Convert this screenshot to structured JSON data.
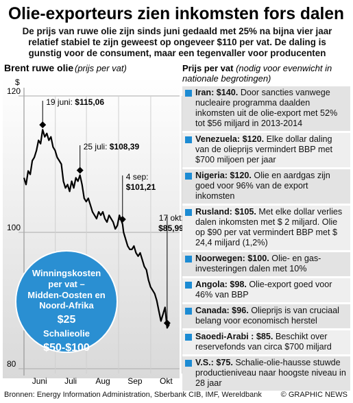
{
  "title": "Olie-exporteurs zien inkomsten fors dalen",
  "subtitle_lines": [
    "De prijs van ruwe olie zijn sinds juni gedaald met 25% na bijna vier jaar",
    "relatief stabiel te zijn geweest op ongeveer $110 per vat. De daling is",
    "gunstig voor de consument, maar een tegenvaller voor producenten"
  ],
  "chart_data": {
    "type": "line",
    "title": "Brent ruwe olie",
    "subtitle": "(prijs per vat)",
    "y_unit": "$",
    "x": [
      0,
      2,
      4,
      6,
      8,
      10,
      12,
      14,
      16,
      18,
      20,
      22,
      24,
      26,
      28,
      30,
      32,
      34,
      36,
      38,
      40,
      42,
      44,
      46,
      48,
      50,
      52,
      54,
      56,
      58,
      60,
      62,
      64,
      66,
      68,
      70,
      72,
      74,
      76,
      78,
      80,
      82,
      84,
      86,
      88,
      90,
      92,
      95,
      96,
      98,
      100,
      102,
      104,
      106,
      108,
      110,
      112,
      114,
      116,
      118,
      120,
      122,
      124,
      126,
      128,
      130,
      132,
      134,
      136,
      138,
      140
    ],
    "series": [
      {
        "name": "Brent ruwe olie",
        "color": "#000000",
        "values": [
          108,
          107,
          109,
          108.5,
          110.5,
          111,
          112,
          113.5,
          113,
          115.06,
          114,
          114.5,
          113.5,
          114,
          112.5,
          112,
          111,
          110.5,
          110,
          107.5,
          106.5,
          107,
          106,
          107.5,
          106.5,
          108,
          107.5,
          108.39,
          107,
          105,
          104.5,
          105,
          104,
          103,
          102.5,
          102,
          103,
          102.5,
          103,
          102,
          101.5,
          102.5,
          102,
          101.5,
          100.5,
          101,
          102.5,
          101.21,
          100,
          99,
          98,
          97.5,
          97.5,
          98,
          97,
          96.5,
          97,
          96,
          95,
          94.5,
          93,
          92,
          91.5,
          91,
          90,
          88.5,
          87,
          88,
          89,
          85.99,
          86.5
        ]
      }
    ],
    "xlim": [
      0,
      150
    ],
    "xticks": [
      {
        "value": 15,
        "label": "Juni"
      },
      {
        "value": 45,
        "label": "Juli"
      },
      {
        "value": 76,
        "label": "Aug"
      },
      {
        "value": 107,
        "label": "Sep"
      },
      {
        "value": 137,
        "label": "Okt"
      }
    ],
    "ylim": [
      80,
      120
    ],
    "yticks": [
      80,
      100,
      120
    ],
    "annotations": [
      {
        "label": "19 juni:",
        "price_label": "$115,06",
        "x": 18,
        "value": 115.06
      },
      {
        "label": "25 juli:",
        "price_label": "$108,39",
        "x": 54,
        "value": 108.39
      },
      {
        "label": "4 sep:",
        "price_label": "$101,21",
        "x": 95,
        "value": 101.21
      },
      {
        "label": "17 okt:",
        "price_label": "$85,99",
        "x": 138,
        "value": 85.99
      }
    ]
  },
  "callout": [
    "Winningskosten",
    "per vat –",
    "Midden-Oosten en",
    "Noord-Afrika",
    "$25",
    "Schalieolie",
    "$50-$100"
  ],
  "infobox": {
    "title": "Prijs per vat",
    "note": "(nodig voor evenwicht in nationale begrotingen)",
    "items": [
      {
        "name": "Iran: $140.",
        "text": "Door sancties vanwege nucleaire programma daalden inkomsten uit de olie-export met 52% tot $56 miljard in 2013-2014"
      },
      {
        "name": "Venezuela: $120.",
        "text": "Elke dollar daling van de olieprijs vermindert BBP met $700 miljoen per jaar"
      },
      {
        "name": "Nigeria: $120.",
        "text": "Olie en aardgas zijn goed voor 96% van de export inkomsten"
      },
      {
        "name": "Rusland: $105.",
        "text": "Met elke dollar verlies dalen inkomsten met $ 2 miljard. Olie op $90 per vat vermindert BBP met $ 24,4 miljard (1,2%)"
      },
      {
        "name": "Noorwegen: $100.",
        "text": "Olie- en gas-investeringen dalen met 10%"
      },
      {
        "name": "Angola: $98.",
        "text": "Olie-export goed voor 46% van BBP"
      },
      {
        "name": "Canada: $96.",
        "text": "Olieprijs is van cruciaal belang voor economisch herstel"
      },
      {
        "name": "Saoedi-Arabi : $85.",
        "text": "Beschikt over reservefonds van circa $700 miljard"
      },
      {
        "name": "V.S.: $75.",
        "text": "Schalie-olie-hausse stuwde productieniveau naar hoogste niveau in 28 jaar"
      }
    ]
  },
  "source": "Bronnen: Energy Information Administration, Sberbank CIB, IMF, Wereldbank",
  "credit": "© GRAPHIC NEWS"
}
